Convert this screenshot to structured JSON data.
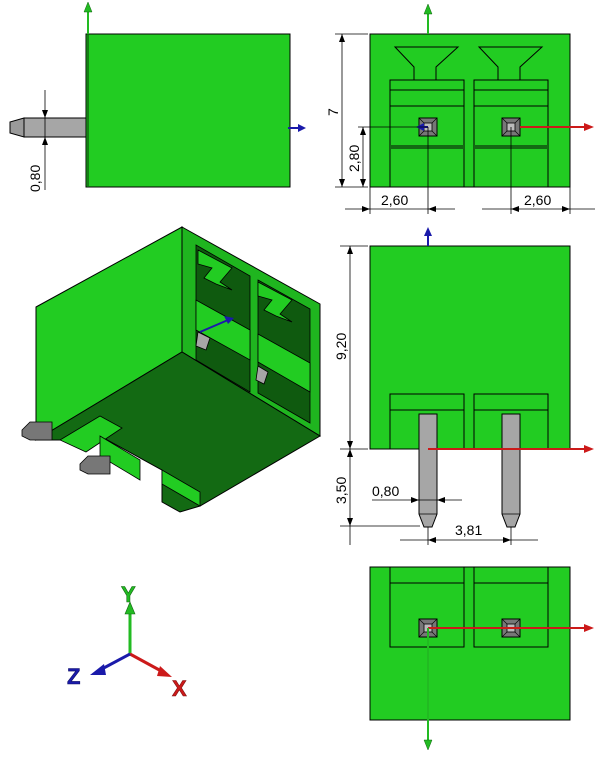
{
  "colors": {
    "body_green": "#22cc22",
    "body_green_mid": "#1faa1f",
    "body_green_dark": "#136a13",
    "pin_gray": "#a6a6a6",
    "pin_dark": "#555555",
    "axis_x": "#cc1a1a",
    "axis_y": "#22bb22",
    "axis_z": "#1a1aaa",
    "line": "#000000"
  },
  "views": {
    "side": {
      "dimensions": {
        "pin_width": "0,80"
      }
    },
    "front": {
      "dimensions": {
        "height": "7",
        "pin_height": "2,80",
        "offset_left": "2,60",
        "offset_right": "2,60"
      }
    },
    "isometric": {},
    "section": {
      "dimensions": {
        "body_height": "9,20",
        "pin_length": "3,50",
        "pin_width": "0,80",
        "pitch": "3,81"
      }
    },
    "bottom": {}
  },
  "triad": {
    "x_label": "X",
    "y_label": "Y",
    "z_label": "Z",
    "icons": [
      "x-axis-arrow-icon",
      "y-axis-arrow-icon",
      "z-axis-arrow-icon"
    ]
  }
}
